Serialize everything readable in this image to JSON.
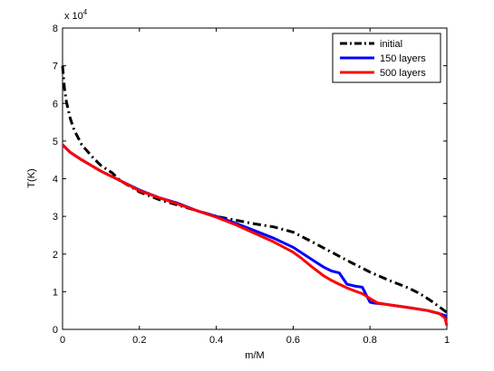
{
  "chart_data": {
    "type": "line",
    "title": "",
    "xlabel": "m/M",
    "ylabel": "T(K)",
    "y_multiplier": "x 10",
    "y_multiplier_exp": "4",
    "xlim": [
      0,
      1
    ],
    "ylim": [
      0,
      8
    ],
    "xticks": [
      0,
      0.2,
      0.4,
      0.6,
      0.8,
      1
    ],
    "xtick_labels": [
      "0",
      "0.2",
      "0.4",
      "0.6",
      "0.8",
      "1"
    ],
    "yticks": [
      0,
      1,
      2,
      3,
      4,
      5,
      6,
      7,
      8
    ],
    "ytick_labels": [
      "0",
      "1",
      "2",
      "3",
      "4",
      "5",
      "6",
      "7",
      "8"
    ],
    "grid": false,
    "legend_position": "top-right",
    "series": [
      {
        "name": "initial",
        "color": "#000000",
        "style": "dash-dot",
        "x": [
          0,
          0.005,
          0.01,
          0.02,
          0.03,
          0.05,
          0.08,
          0.1,
          0.13,
          0.15,
          0.2,
          0.25,
          0.3,
          0.35,
          0.4,
          0.45,
          0.5,
          0.55,
          0.6,
          0.65,
          0.7,
          0.75,
          0.8,
          0.85,
          0.9,
          0.93,
          0.96,
          0.98,
          1.0
        ],
        "y": [
          7.0,
          6.4,
          6.05,
          5.6,
          5.3,
          4.9,
          4.55,
          4.35,
          4.15,
          3.95,
          3.65,
          3.45,
          3.3,
          3.15,
          3.0,
          2.9,
          2.8,
          2.72,
          2.58,
          2.32,
          2.05,
          1.78,
          1.52,
          1.3,
          1.1,
          0.95,
          0.75,
          0.6,
          0.45
        ]
      },
      {
        "name": "150 layers",
        "color": "#0000ff",
        "style": "solid",
        "x": [
          0,
          0.02,
          0.05,
          0.1,
          0.15,
          0.2,
          0.25,
          0.3,
          0.35,
          0.4,
          0.45,
          0.5,
          0.55,
          0.6,
          0.63,
          0.66,
          0.68,
          0.7,
          0.72,
          0.74,
          0.76,
          0.78,
          0.8,
          0.81,
          0.83,
          0.85,
          0.9,
          0.95,
          0.98,
          1.0
        ],
        "y": [
          4.9,
          4.7,
          4.5,
          4.2,
          3.95,
          3.7,
          3.5,
          3.35,
          3.15,
          3.0,
          2.82,
          2.62,
          2.42,
          2.18,
          1.98,
          1.78,
          1.65,
          1.55,
          1.5,
          1.2,
          1.15,
          1.12,
          0.72,
          0.7,
          0.68,
          0.65,
          0.58,
          0.5,
          0.42,
          0.35
        ]
      },
      {
        "name": "500 layers",
        "color": "#ff0000",
        "style": "solid",
        "x": [
          0,
          0.02,
          0.05,
          0.1,
          0.15,
          0.2,
          0.25,
          0.3,
          0.35,
          0.4,
          0.45,
          0.5,
          0.55,
          0.6,
          0.62,
          0.65,
          0.68,
          0.7,
          0.72,
          0.74,
          0.76,
          0.78,
          0.8,
          0.82,
          0.85,
          0.9,
          0.95,
          0.98,
          0.995,
          1.0
        ],
        "y": [
          4.9,
          4.7,
          4.5,
          4.2,
          3.95,
          3.68,
          3.5,
          3.33,
          3.15,
          2.98,
          2.78,
          2.55,
          2.32,
          2.05,
          1.9,
          1.65,
          1.42,
          1.3,
          1.2,
          1.1,
          1.02,
          0.95,
          0.82,
          0.7,
          0.65,
          0.58,
          0.5,
          0.42,
          0.3,
          0.1
        ]
      }
    ]
  }
}
